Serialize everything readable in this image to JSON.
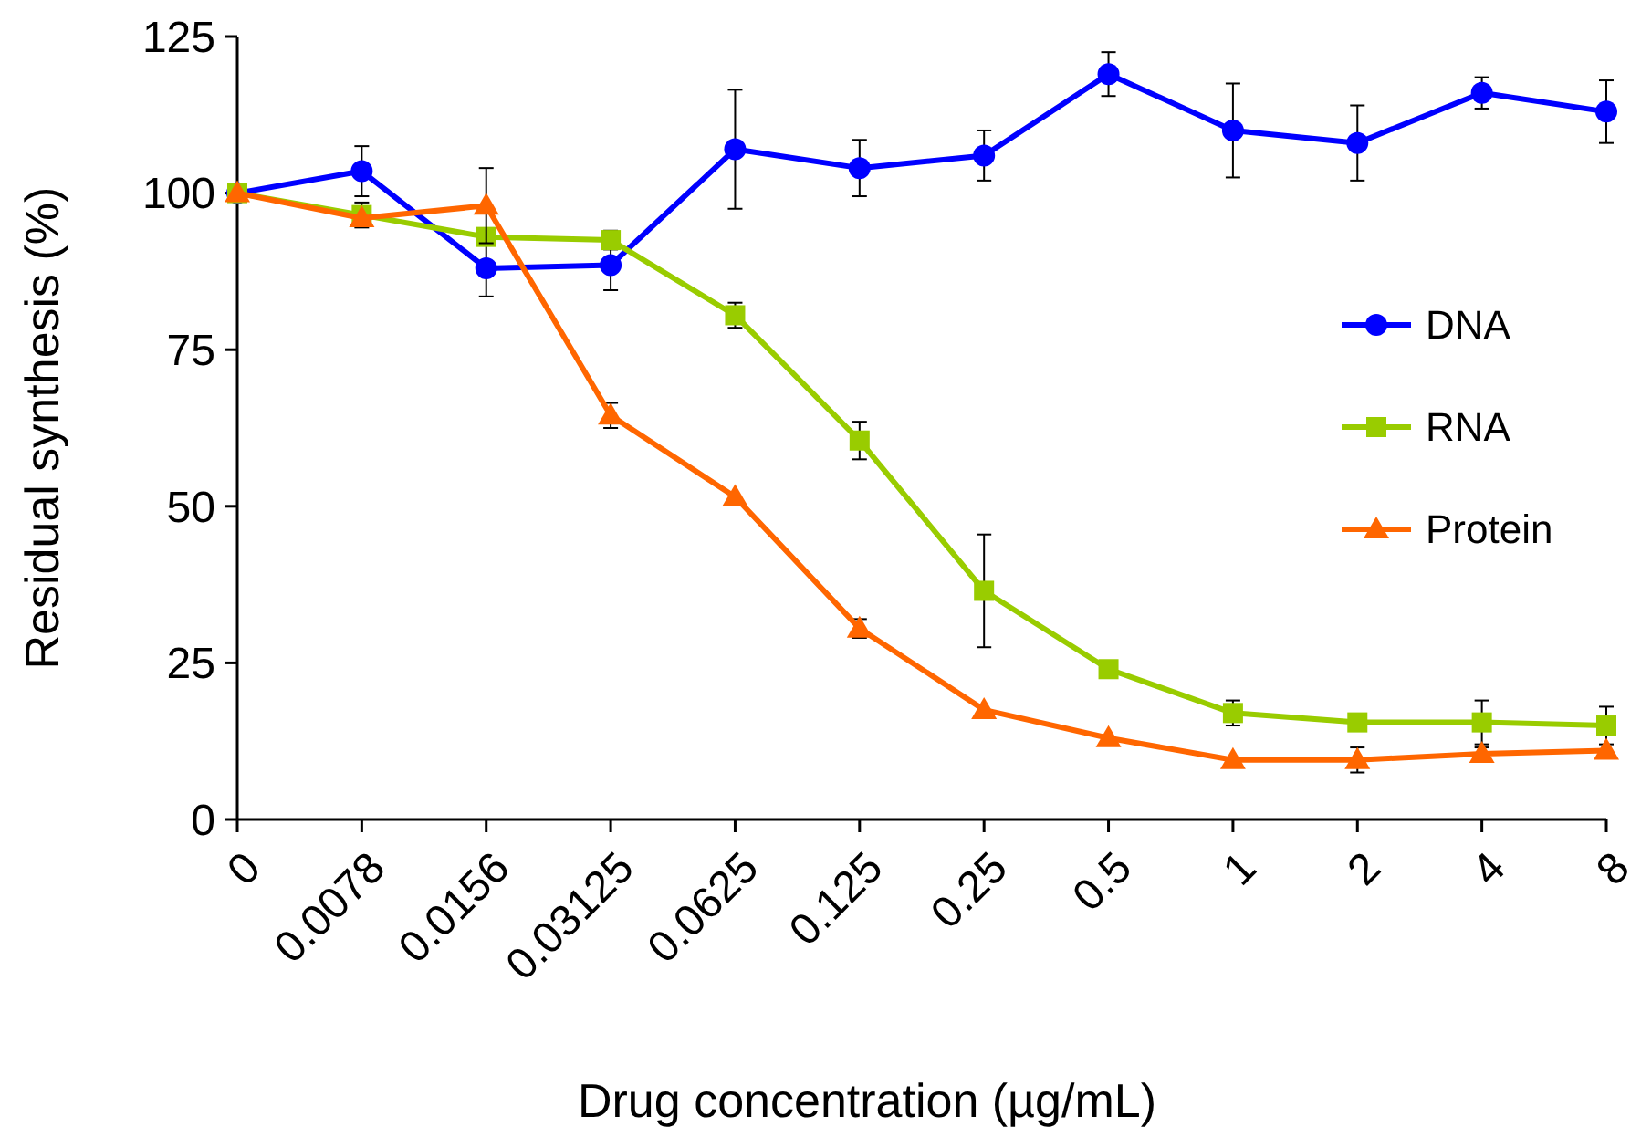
{
  "chart_data": {
    "type": "line",
    "xlabel": "Drug concentration (µg/mL)",
    "ylabel": "Residual synthesis (%)",
    "categories": [
      "0",
      "0.0078",
      "0.0156",
      "0.03125",
      "0.0625",
      "0.125",
      "0.25",
      "0.5",
      "1",
      "2",
      "4",
      "8"
    ],
    "ylim": [
      0,
      125
    ],
    "yticks": [
      0,
      25,
      50,
      75,
      100,
      125
    ],
    "grid": false,
    "legend": "right",
    "series": [
      {
        "name": "DNA",
        "color": "#0000ff",
        "marker": "circle",
        "values": [
          100,
          103.5,
          88,
          88.5,
          107,
          104,
          106,
          119,
          110,
          108,
          116,
          113
        ],
        "errors": [
          null,
          4,
          4.5,
          4,
          9.5,
          4.5,
          4,
          3.5,
          7.5,
          6,
          2.5,
          5
        ]
      },
      {
        "name": "RNA",
        "color": "#99cc00",
        "marker": "square",
        "values": [
          100,
          96.5,
          93,
          92.5,
          80.5,
          60.5,
          36.5,
          24,
          17,
          15.5,
          15.5,
          15
        ],
        "errors": [
          null,
          2,
          null,
          1.5,
          2,
          3,
          9,
          null,
          2,
          null,
          3.5,
          3
        ]
      },
      {
        "name": "Protein",
        "color": "#ff6600",
        "marker": "triangle",
        "values": [
          100,
          96,
          98,
          64.5,
          51.5,
          30.5,
          17.5,
          13,
          9.5,
          9.5,
          10.5,
          11
        ],
        "errors": [
          null,
          null,
          6,
          2,
          null,
          1.5,
          null,
          null,
          null,
          2,
          1,
          null
        ]
      }
    ]
  }
}
